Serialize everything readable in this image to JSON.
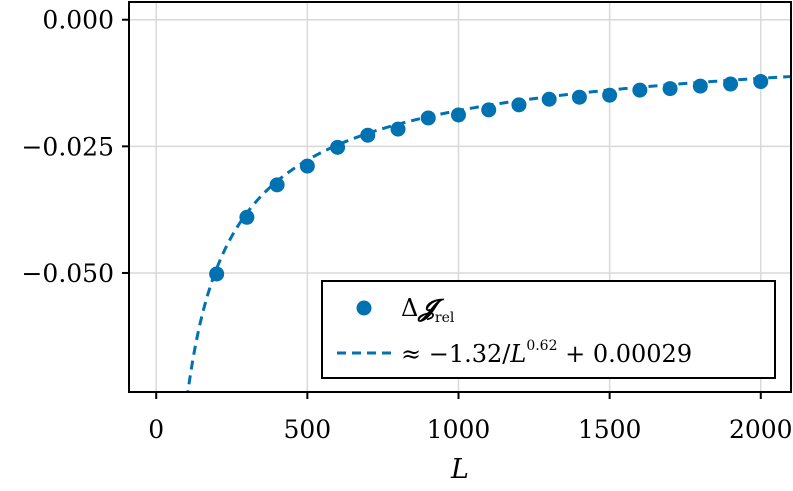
{
  "chart_data": {
    "type": "scatter",
    "xlabel": "L",
    "ylabel": "",
    "xlim": [
      -90,
      2100
    ],
    "ylim": [
      -0.0735,
      0.0035
    ],
    "x_ticks": [
      0,
      500,
      1000,
      1500,
      2000
    ],
    "x_tick_labels": [
      "0",
      "500",
      "1000",
      "1500",
      "2000"
    ],
    "y_ticks": [
      0.0,
      -0.025,
      -0.05
    ],
    "y_tick_labels": [
      "0.000",
      "−0.025",
      "−0.050"
    ],
    "grid": true,
    "legend_position": "bottom-right",
    "series": [
      {
        "name": "Δ𝓙rel",
        "kind": "points",
        "color": "#0072b2",
        "x": [
          200,
          300,
          400,
          500,
          600,
          700,
          800,
          900,
          1000,
          1100,
          1200,
          1300,
          1400,
          1500,
          1600,
          1700,
          1800,
          1900,
          2000
        ],
        "y": [
          -0.0502,
          -0.039,
          -0.0326,
          -0.0289,
          -0.0252,
          -0.0228,
          -0.0216,
          -0.0194,
          -0.0188,
          -0.0178,
          -0.0168,
          -0.0157,
          -0.0153,
          -0.0149,
          -0.0139,
          -0.0136,
          -0.0131,
          -0.0127,
          -0.0122
        ]
      },
      {
        "name": "≈ −1.32/L^0.62 + 0.00029",
        "kind": "fit",
        "color": "#0072b2",
        "coef": -1.32,
        "exponent": 0.62,
        "offset": 0.00029,
        "x_range": [
          90,
          2100
        ]
      }
    ],
    "legend": {
      "points_symbol": "Δ",
      "points_symbol_bold": "𝓙",
      "points_subscript": "rel",
      "fit_prefix": "≈ −1.32/",
      "fit_var": "L",
      "fit_exp": "0.62",
      "fit_suffix": " + 0.00029"
    }
  }
}
